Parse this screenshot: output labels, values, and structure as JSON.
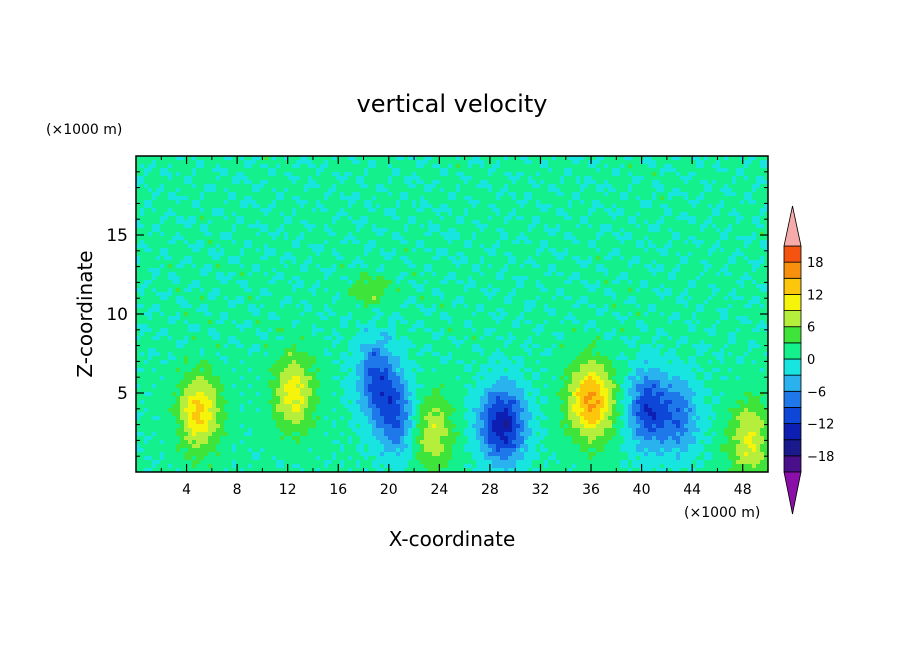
{
  "chart_data": {
    "type": "heatmap",
    "title": "vertical velocity",
    "xlabel": "X-coordinate",
    "ylabel": "Z-coordinate",
    "x_unit": "(×1000 m)",
    "y_unit": "(×1000 m)",
    "xlim": [
      0,
      50
    ],
    "ylim": [
      0,
      20
    ],
    "x_ticks": [
      4,
      8,
      12,
      16,
      20,
      24,
      28,
      32,
      36,
      40,
      44,
      48
    ],
    "x_tick_labels": [
      "4",
      "8",
      "12",
      "16",
      "20",
      "24",
      "28",
      "32",
      "36",
      "40",
      "44",
      "48"
    ],
    "y_ticks": [
      5,
      10,
      15
    ],
    "y_tick_labels": [
      "5",
      "10",
      "15"
    ],
    "grid": false,
    "colorbar": {
      "placement": "right",
      "range": [
        -21,
        21
      ],
      "levels": [
        -21,
        -18,
        -15,
        -12,
        -9,
        -6,
        -3,
        0,
        3,
        6,
        9,
        12,
        15,
        18,
        21
      ],
      "colors": [
        "#4a0f8a",
        "#1a1a8c",
        "#0d1fb3",
        "#0e46d8",
        "#1f78ea",
        "#2ab2ee",
        "#19e5e0",
        "#13f08c",
        "#3fe43a",
        "#b6ef3b",
        "#f7f40c",
        "#fbc60c",
        "#f8900e",
        "#f4540f",
        "#ee1c15"
      ],
      "under_color": "#8a0ea8",
      "over_color": "#f7aaaa",
      "tick_values": [
        -18,
        -12,
        -6,
        0,
        6,
        12,
        18
      ],
      "tick_labels": [
        "−18",
        "−12",
        "−6",
        "0",
        "6",
        "12",
        "18"
      ]
    },
    "features": [
      {
        "x": 5.0,
        "z": 3.8,
        "value": 12
      },
      {
        "x": 12.5,
        "z": 5.0,
        "value": 10
      },
      {
        "x": 19.0,
        "z": 6.0,
        "value": -10
      },
      {
        "x": 20.5,
        "z": 3.5,
        "value": -10
      },
      {
        "x": 23.5,
        "z": 2.5,
        "value": 8
      },
      {
        "x": 29.0,
        "z": 3.0,
        "value": -15
      },
      {
        "x": 36.0,
        "z": 4.5,
        "value": 15
      },
      {
        "x": 40.5,
        "z": 4.0,
        "value": -12
      },
      {
        "x": 43.0,
        "z": 3.5,
        "value": -8
      },
      {
        "x": 48.5,
        "z": 2.0,
        "value": 9
      },
      {
        "x": 18.5,
        "z": 11.5,
        "value": 5
      }
    ]
  }
}
